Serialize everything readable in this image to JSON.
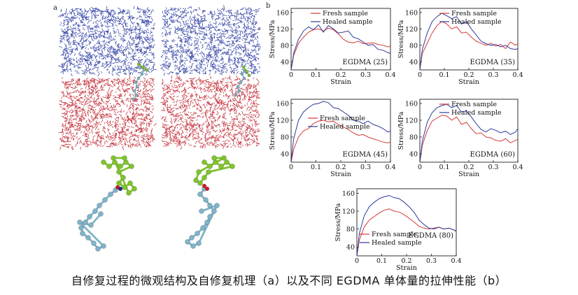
{
  "panel_a": {
    "label": "a"
  },
  "panel_b": {
    "label": "b"
  },
  "caption": "自修复过程的微观结构及自修复机理（a）以及不同 EGDMA 单体量的拉伸性能（b）",
  "colors": {
    "fresh": "#d63a3a",
    "healed": "#2d3c9a",
    "water_blue": "#3b4aa8",
    "water_red": "#c4343e",
    "chain_green": "#7fc52a",
    "chain_teal": "#7fb4c9"
  },
  "chart_data": [
    {
      "type": "line",
      "annotation": "EGDMA (25)",
      "xlabel": "Strain",
      "ylabel": "Stress/MPa",
      "xlim": [
        0,
        0.4
      ],
      "ylim": [
        20,
        170
      ],
      "xticks": [
        "0",
        "0.1",
        "0.2",
        "0.3",
        "0.4"
      ],
      "yticks": [
        "40",
        "80",
        "120",
        "160"
      ],
      "legend": "top",
      "series": [
        {
          "name": "Fresh sample",
          "color": "#d63a3a",
          "x": [
            0,
            0.01,
            0.03,
            0.05,
            0.07,
            0.09,
            0.11,
            0.13,
            0.15,
            0.17,
            0.19,
            0.21,
            0.23,
            0.25,
            0.27,
            0.29,
            0.31,
            0.33,
            0.35,
            0.37,
            0.39,
            0.4
          ],
          "y": [
            20,
            55,
            85,
            100,
            112,
            118,
            120,
            115,
            122,
            118,
            108,
            95,
            88,
            86,
            90,
            84,
            85,
            86,
            82,
            80,
            76,
            78
          ]
        },
        {
          "name": "Healed sample",
          "color": "#2d3c9a",
          "x": [
            0,
            0.01,
            0.03,
            0.05,
            0.07,
            0.09,
            0.11,
            0.13,
            0.15,
            0.17,
            0.19,
            0.21,
            0.23,
            0.25,
            0.27,
            0.29,
            0.31,
            0.33,
            0.35,
            0.37,
            0.39,
            0.4
          ],
          "y": [
            20,
            60,
            95,
            115,
            125,
            118,
            130,
            112,
            128,
            120,
            110,
            112,
            115,
            100,
            96,
            88,
            80,
            82,
            70,
            68,
            62,
            60
          ]
        }
      ]
    },
    {
      "type": "line",
      "annotation": "EGDMA (35)",
      "xlabel": "Strain",
      "ylabel": "Stress/MPa",
      "xlim": [
        0,
        0.4
      ],
      "ylim": [
        20,
        170
      ],
      "xticks": [
        "0",
        "0.1",
        "0.2",
        "0.3",
        "0.4"
      ],
      "yticks": [
        "40",
        "80",
        "120",
        "160"
      ],
      "legend": "top",
      "series": [
        {
          "name": "Fresh sample",
          "color": "#d63a3a",
          "x": [
            0,
            0.01,
            0.03,
            0.05,
            0.07,
            0.09,
            0.11,
            0.13,
            0.15,
            0.17,
            0.19,
            0.21,
            0.23,
            0.25,
            0.27,
            0.29,
            0.31,
            0.33,
            0.35,
            0.37,
            0.39,
            0.4
          ],
          "y": [
            20,
            60,
            85,
            110,
            128,
            138,
            132,
            120,
            125,
            110,
            112,
            100,
            90,
            85,
            80,
            85,
            78,
            82,
            72,
            88,
            80,
            84
          ]
        },
        {
          "name": "Healed sample",
          "color": "#2d3c9a",
          "x": [
            0,
            0.01,
            0.03,
            0.05,
            0.07,
            0.09,
            0.11,
            0.13,
            0.15,
            0.17,
            0.19,
            0.21,
            0.23,
            0.25,
            0.27,
            0.29,
            0.31,
            0.33,
            0.35,
            0.37,
            0.39,
            0.4
          ],
          "y": [
            20,
            70,
            110,
            138,
            150,
            158,
            152,
            145,
            150,
            132,
            138,
            120,
            105,
            90,
            84,
            80,
            82,
            76,
            80,
            72,
            70,
            72
          ]
        }
      ]
    },
    {
      "type": "line",
      "annotation": "EGDMA (45)",
      "xlabel": "Strain",
      "ylabel": "Stress/MPa",
      "xlim": [
        0,
        0.4
      ],
      "ylim": [
        20,
        170
      ],
      "xticks": [
        "0",
        "0.1",
        "0.2",
        "0.3",
        "0.4"
      ],
      "yticks": [
        "40",
        "80",
        "120",
        "160"
      ],
      "legend": "middle",
      "series": [
        {
          "name": "Fresh sample",
          "color": "#d63a3a",
          "x": [
            0,
            0.01,
            0.03,
            0.05,
            0.07,
            0.09,
            0.11,
            0.13,
            0.15,
            0.17,
            0.19,
            0.21,
            0.23,
            0.25,
            0.27,
            0.29,
            0.31,
            0.33,
            0.35,
            0.37,
            0.39,
            0.4
          ],
          "y": [
            20,
            50,
            80,
            95,
            100,
            112,
            118,
            120,
            116,
            118,
            110,
            104,
            98,
            90,
            84,
            86,
            80,
            76,
            72,
            68,
            66,
            68
          ]
        },
        {
          "name": "Healed sample",
          "color": "#2d3c9a",
          "x": [
            0,
            0.01,
            0.03,
            0.05,
            0.07,
            0.09,
            0.11,
            0.13,
            0.15,
            0.17,
            0.19,
            0.21,
            0.23,
            0.25,
            0.27,
            0.29,
            0.31,
            0.33,
            0.35,
            0.37,
            0.39,
            0.4
          ],
          "y": [
            20,
            75,
            120,
            140,
            150,
            158,
            160,
            165,
            162,
            150,
            148,
            140,
            132,
            120,
            118,
            112,
            118,
            110,
            106,
            100,
            92,
            94
          ]
        }
      ]
    },
    {
      "type": "line",
      "annotation": "EGDMA (60)",
      "xlabel": "Strain",
      "ylabel": "Stress/MPa",
      "xlim": [
        0,
        0.4
      ],
      "ylim": [
        20,
        170
      ],
      "xticks": [
        "0",
        "0.1",
        "0.2",
        "0.3",
        "0.4"
      ],
      "yticks": [
        "40",
        "80",
        "120",
        "160"
      ],
      "legend": "top",
      "series": [
        {
          "name": "Fresh sample",
          "color": "#d63a3a",
          "x": [
            0,
            0.01,
            0.03,
            0.05,
            0.07,
            0.09,
            0.11,
            0.13,
            0.15,
            0.17,
            0.19,
            0.21,
            0.23,
            0.25,
            0.27,
            0.29,
            0.31,
            0.33,
            0.35,
            0.37,
            0.39,
            0.4
          ],
          "y": [
            20,
            60,
            95,
            118,
            125,
            132,
            130,
            120,
            128,
            110,
            115,
            100,
            88,
            90,
            80,
            78,
            72,
            70,
            76,
            66,
            72,
            74
          ]
        },
        {
          "name": "Healed sample",
          "color": "#2d3c9a",
          "x": [
            0,
            0.01,
            0.03,
            0.05,
            0.07,
            0.09,
            0.11,
            0.13,
            0.15,
            0.17,
            0.19,
            0.21,
            0.23,
            0.25,
            0.27,
            0.29,
            0.31,
            0.33,
            0.35,
            0.37,
            0.39,
            0.4
          ],
          "y": [
            20,
            70,
            115,
            138,
            150,
            155,
            158,
            150,
            155,
            140,
            142,
            128,
            112,
            98,
            92,
            100,
            96,
            90,
            94,
            86,
            92,
            100
          ]
        }
      ]
    },
    {
      "type": "line",
      "annotation": "EGDMA (80)",
      "xlabel": "Strain",
      "ylabel": "Stress/MPa",
      "xlim": [
        0,
        0.4
      ],
      "ylim": [
        20,
        170
      ],
      "xticks": [
        "0",
        "0.1",
        "0.2",
        "0.3",
        "0.4"
      ],
      "yticks": [
        "40",
        "80",
        "120",
        "160"
      ],
      "legend": "bottom-left",
      "series": [
        {
          "name": "Fresh sample",
          "color": "#d63a3a",
          "x": [
            0,
            0.01,
            0.03,
            0.05,
            0.07,
            0.09,
            0.11,
            0.13,
            0.15,
            0.17,
            0.19,
            0.21,
            0.23,
            0.25,
            0.27,
            0.29,
            0.31,
            0.33,
            0.35,
            0.37,
            0.39,
            0.4
          ],
          "y": [
            20,
            55,
            85,
            100,
            108,
            116,
            122,
            125,
            120,
            118,
            112,
            104,
            96,
            86,
            82,
            80,
            82,
            84,
            80,
            82,
            78,
            74
          ]
        },
        {
          "name": "Healed sample",
          "color": "#2d3c9a",
          "x": [
            0,
            0.01,
            0.03,
            0.05,
            0.07,
            0.09,
            0.11,
            0.13,
            0.15,
            0.17,
            0.19,
            0.21,
            0.23,
            0.25,
            0.27,
            0.29,
            0.31,
            0.33,
            0.35,
            0.37,
            0.39,
            0.4
          ],
          "y": [
            20,
            70,
            110,
            130,
            140,
            148,
            152,
            155,
            150,
            148,
            140,
            130,
            118,
            100,
            90,
            82,
            80,
            84,
            80,
            82,
            78,
            76
          ]
        }
      ]
    }
  ]
}
